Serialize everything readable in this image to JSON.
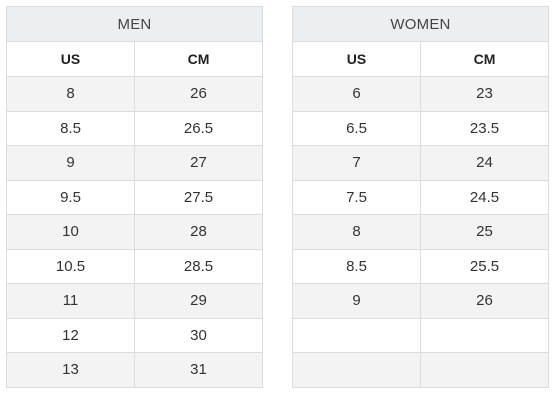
{
  "men": {
    "title": "MEN",
    "headers": [
      "US",
      "CM"
    ],
    "rows": [
      [
        "8",
        "26"
      ],
      [
        "8.5",
        "26.5"
      ],
      [
        "9",
        "27"
      ],
      [
        "9.5",
        "27.5"
      ],
      [
        "10",
        "28"
      ],
      [
        "10.5",
        "28.5"
      ],
      [
        "11",
        "29"
      ],
      [
        "12",
        "30"
      ],
      [
        "13",
        "31"
      ]
    ]
  },
  "women": {
    "title": "WOMEN",
    "headers": [
      "US",
      "CM"
    ],
    "rows": [
      [
        "6",
        "23"
      ],
      [
        "6.5",
        "23.5"
      ],
      [
        "7",
        "24"
      ],
      [
        "7.5",
        "24.5"
      ],
      [
        "8",
        "25"
      ],
      [
        "8.5",
        "25.5"
      ],
      [
        "9",
        "26"
      ],
      [
        "",
        ""
      ],
      [
        "",
        ""
      ]
    ]
  }
}
